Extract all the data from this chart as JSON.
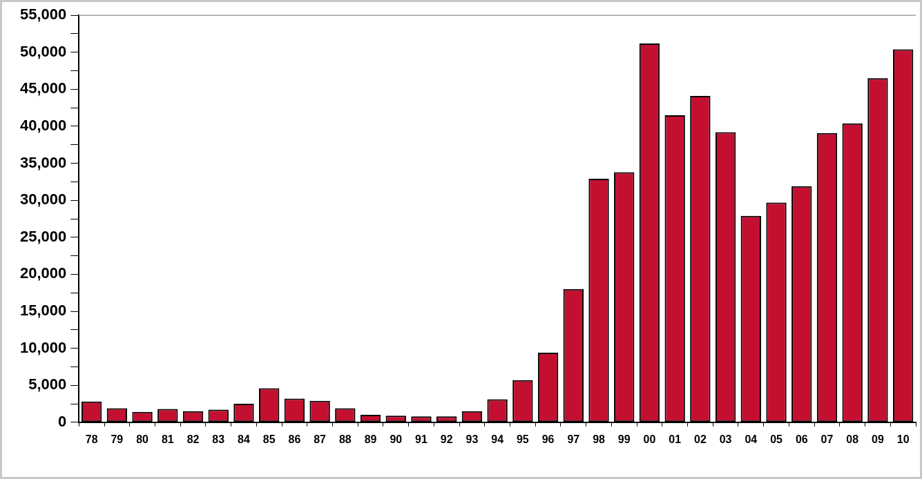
{
  "chart_data": {
    "type": "bar",
    "categories": [
      "78",
      "79",
      "80",
      "81",
      "82",
      "83",
      "84",
      "85",
      "86",
      "87",
      "88",
      "89",
      "90",
      "91",
      "92",
      "93",
      "94",
      "95",
      "96",
      "97",
      "98",
      "99",
      "00",
      "01",
      "02",
      "03",
      "04",
      "05",
      "06",
      "07",
      "08",
      "09",
      "10"
    ],
    "series": [
      {
        "color": "#c41030",
        "values": [
          2800,
          1900,
          1400,
          1800,
          1500,
          1700,
          2500,
          4600,
          3200,
          2900,
          1900,
          1000,
          900,
          800,
          800,
          1500,
          3100,
          5700,
          9400,
          18000,
          32900,
          33800,
          51200,
          41500,
          44100,
          39200,
          27900,
          29700,
          31900,
          39100,
          40400,
          46500,
          50400
        ]
      }
    ],
    "ylim": [
      0,
      55000
    ],
    "yticks": [
      0,
      {
        "value": 2500,
        "label": null
      },
      {
        "value": 5000,
        "label": "5,000"
      },
      {
        "value": 7500,
        "label": null
      },
      {
        "value": 10000,
        "label": "10,000"
      },
      {
        "value": 12500,
        "label": null
      },
      {
        "value": 15000,
        "label": "15,000"
      },
      {
        "value": 17500,
        "label": null
      },
      {
        "value": 20000,
        "label": "20,000"
      },
      {
        "value": 22500,
        "label": null
      },
      {
        "value": 25000,
        "label": "25,000"
      },
      {
        "value": 27500,
        "label": null
      },
      {
        "value": 30000,
        "label": "30,000"
      },
      {
        "value": 32500,
        "label": null
      },
      {
        "value": 35000,
        "label": "35,000"
      },
      {
        "value": 37500,
        "label": null
      },
      {
        "value": 40000,
        "label": "40,000"
      },
      {
        "value": 42500,
        "label": null
      },
      {
        "value": 45000,
        "label": "45,000"
      },
      {
        "value": 47500,
        "label": null
      },
      {
        "value": 50000,
        "label": "50,000"
      },
      {
        "value": 52500,
        "label": null
      },
      {
        "value": 55000,
        "label": "55,000"
      }
    ],
    "grid": false,
    "legend": false
  }
}
